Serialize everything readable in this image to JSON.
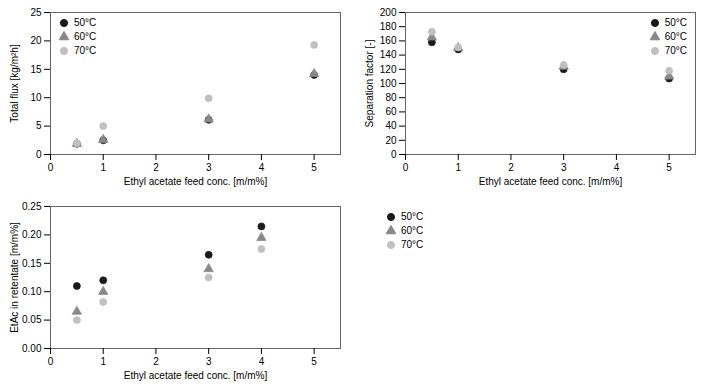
{
  "chart_data": [
    {
      "type": "scatter",
      "xlabel": "Ethyl acetate feed conc. [m/m%]",
      "ylabel": "Total flux [kg/m²h]",
      "x": [
        0.5,
        1.0,
        3.0,
        5.0
      ],
      "series": [
        {
          "name": "50°C",
          "color": "#1a1a1a",
          "marker": "circle",
          "values": [
            1.9,
            2.5,
            6.1,
            14.0
          ]
        },
        {
          "name": "60°C",
          "color": "#888888",
          "marker": "triangle",
          "values": [
            1.9,
            2.6,
            6.2,
            14.2
          ]
        },
        {
          "name": "70°C",
          "color": "#c0c0c0",
          "marker": "circle",
          "values": [
            2.0,
            5.0,
            9.9,
            19.3
          ]
        }
      ],
      "xlim": [
        0,
        5.5
      ],
      "ylim": [
        0,
        25
      ],
      "xticks": [
        0,
        1,
        2,
        3,
        4,
        5
      ],
      "yticks": [
        0,
        5,
        10,
        15,
        20,
        25
      ],
      "legend": "upper left"
    },
    {
      "type": "scatter",
      "xlabel": "Ethyl acetate feed conc. [m/m%]",
      "ylabel": "Separation factor [-]",
      "x": [
        0.5,
        1.0,
        3.0,
        5.0
      ],
      "series": [
        {
          "name": "50°C",
          "color": "#1a1a1a",
          "marker": "circle",
          "values": [
            158,
            148,
            120,
            107
          ]
        },
        {
          "name": "60°C",
          "color": "#888888",
          "marker": "triangle",
          "values": [
            165,
            150,
            124,
            110
          ]
        },
        {
          "name": "70°C",
          "color": "#c0c0c0",
          "marker": "circle",
          "values": [
            173,
            151,
            126,
            118
          ]
        }
      ],
      "xlim": [
        0,
        5.5
      ],
      "ylim": [
        0,
        200
      ],
      "xticks": [
        0,
        1,
        2,
        3,
        4,
        5
      ],
      "yticks": [
        0,
        20,
        40,
        60,
        80,
        100,
        120,
        140,
        160,
        180,
        200
      ],
      "legend": "upper right"
    },
    {
      "type": "scatter",
      "xlabel": "Ethyl acetate feed conc. [m/m%]",
      "ylabel": "EtAc in retentate [m/m%]",
      "x": [
        0.5,
        1.0,
        3.0,
        4.0
      ],
      "series": [
        {
          "name": "50°C",
          "color": "#1a1a1a",
          "marker": "circle",
          "values": [
            0.11,
            0.12,
            0.165,
            0.215
          ]
        },
        {
          "name": "60°C",
          "color": "#888888",
          "marker": "triangle",
          "values": [
            0.065,
            0.1,
            0.14,
            0.195
          ]
        },
        {
          "name": "70°C",
          "color": "#c0c0c0",
          "marker": "circle",
          "values": [
            0.05,
            0.082,
            0.125,
            0.175
          ]
        }
      ],
      "xlim": [
        0,
        5.5
      ],
      "ylim": [
        0.0,
        0.25
      ],
      "xticks": [
        0,
        1,
        2,
        3,
        4,
        5
      ],
      "yticks": [
        {
          "value": 0.0,
          "label": "0.00"
        },
        {
          "value": 0.05,
          "label": "0.05"
        },
        {
          "value": 0.1,
          "label": "0.10"
        },
        {
          "value": 0.15,
          "label": "0.15"
        },
        {
          "value": 0.2,
          "label": "0.20"
        },
        {
          "value": 0.25,
          "label": "0.25"
        }
      ],
      "legend": "right"
    }
  ]
}
